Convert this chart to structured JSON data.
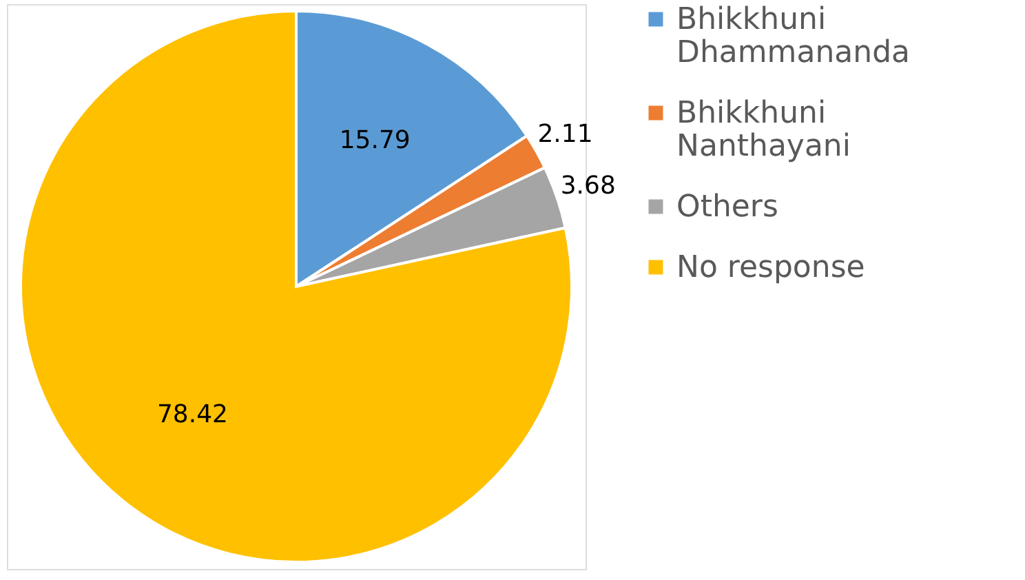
{
  "chart_data": {
    "type": "pie",
    "categories": [
      "Bhikkhuni Dhammananda",
      "Bhikkhuni Nanthayani",
      "Others",
      "No response"
    ],
    "values": [
      15.79,
      2.11,
      3.68,
      78.42
    ],
    "colors": [
      "#5b9bd5",
      "#ed7d31",
      "#a5a5a5",
      "#ffc000"
    ],
    "data_labels": true,
    "legend": "right"
  }
}
